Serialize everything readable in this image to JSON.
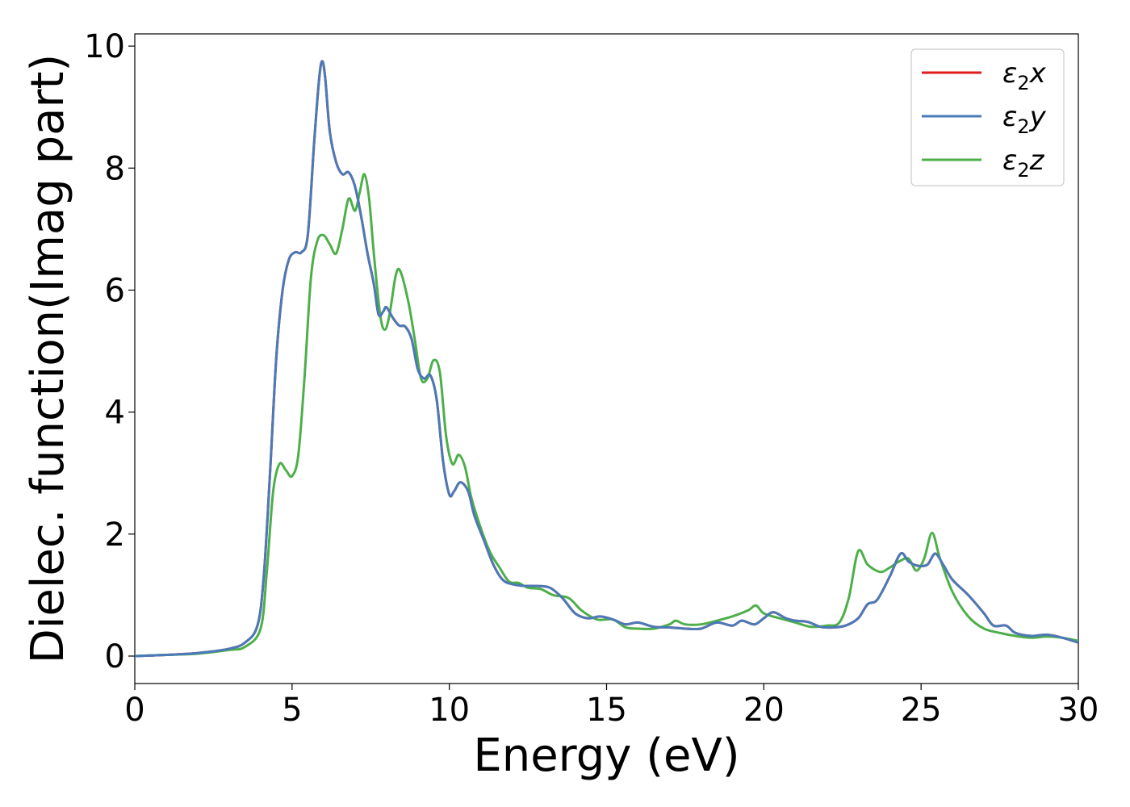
{
  "chart_data": {
    "type": "line",
    "xlabel": "Energy (eV)",
    "ylabel": "Dielec. function(Imag part)",
    "xlim": [
      0,
      30
    ],
    "ylim": [
      -0.45,
      10.2
    ],
    "xticks": [
      0,
      5,
      10,
      15,
      20,
      25,
      30
    ],
    "yticks": [
      0,
      2,
      4,
      6,
      8,
      10
    ],
    "xtick_labels": [
      "0",
      "5",
      "10",
      "15",
      "20",
      "25",
      "30"
    ],
    "ytick_labels": [
      "0",
      "2",
      "4",
      "6",
      "8",
      "10"
    ],
    "grid": false,
    "legend_position": "top-right",
    "series": [
      {
        "name": "ε2x",
        "legend_main": "ε",
        "legend_sub": "2",
        "legend_var": "x",
        "color": "#e41a1c",
        "points": [
          [
            0,
            0
          ],
          [
            1,
            0.02
          ],
          [
            2,
            0.05
          ],
          [
            3,
            0.12
          ],
          [
            3.5,
            0.22
          ],
          [
            3.9,
            0.5
          ],
          [
            4.1,
            1.3
          ],
          [
            4.3,
            3.0
          ],
          [
            4.5,
            4.9
          ],
          [
            4.7,
            6.0
          ],
          [
            4.9,
            6.5
          ],
          [
            5.1,
            6.62
          ],
          [
            5.3,
            6.62
          ],
          [
            5.5,
            6.9
          ],
          [
            5.7,
            8.4
          ],
          [
            5.85,
            9.4
          ],
          [
            5.95,
            9.75
          ],
          [
            6.05,
            9.5
          ],
          [
            6.2,
            8.6
          ],
          [
            6.4,
            8.1
          ],
          [
            6.6,
            7.9
          ],
          [
            6.8,
            7.93
          ],
          [
            7.0,
            7.7
          ],
          [
            7.2,
            7.2
          ],
          [
            7.4,
            6.6
          ],
          [
            7.6,
            6.1
          ],
          [
            7.75,
            5.6
          ],
          [
            7.9,
            5.65
          ],
          [
            8.0,
            5.72
          ],
          [
            8.2,
            5.55
          ],
          [
            8.4,
            5.42
          ],
          [
            8.6,
            5.4
          ],
          [
            8.8,
            5.2
          ],
          [
            9.0,
            4.7
          ],
          [
            9.2,
            4.55
          ],
          [
            9.4,
            4.6
          ],
          [
            9.6,
            4.2
          ],
          [
            9.8,
            3.2
          ],
          [
            10.0,
            2.65
          ],
          [
            10.15,
            2.7
          ],
          [
            10.35,
            2.85
          ],
          [
            10.6,
            2.7
          ],
          [
            10.8,
            2.3
          ],
          [
            11.1,
            1.9
          ],
          [
            11.4,
            1.5
          ],
          [
            11.7,
            1.25
          ],
          [
            12.0,
            1.18
          ],
          [
            12.4,
            1.15
          ],
          [
            12.8,
            1.15
          ],
          [
            13.2,
            1.12
          ],
          [
            13.6,
            0.95
          ],
          [
            14.0,
            0.7
          ],
          [
            14.4,
            0.62
          ],
          [
            14.8,
            0.65
          ],
          [
            15.2,
            0.6
          ],
          [
            15.6,
            0.52
          ],
          [
            16.0,
            0.55
          ],
          [
            16.5,
            0.48
          ],
          [
            17.0,
            0.47
          ],
          [
            17.5,
            0.45
          ],
          [
            18.0,
            0.45
          ],
          [
            18.5,
            0.55
          ],
          [
            19.0,
            0.5
          ],
          [
            19.3,
            0.58
          ],
          [
            19.7,
            0.52
          ],
          [
            20.0,
            0.62
          ],
          [
            20.3,
            0.72
          ],
          [
            20.7,
            0.62
          ],
          [
            21.0,
            0.58
          ],
          [
            21.4,
            0.56
          ],
          [
            21.8,
            0.48
          ],
          [
            22.2,
            0.47
          ],
          [
            22.6,
            0.5
          ],
          [
            23.0,
            0.62
          ],
          [
            23.3,
            0.85
          ],
          [
            23.6,
            0.92
          ],
          [
            24.0,
            1.3
          ],
          [
            24.35,
            1.68
          ],
          [
            24.6,
            1.55
          ],
          [
            24.9,
            1.48
          ],
          [
            25.2,
            1.5
          ],
          [
            25.45,
            1.68
          ],
          [
            25.7,
            1.5
          ],
          [
            26.0,
            1.25
          ],
          [
            26.5,
            1.0
          ],
          [
            27.0,
            0.7
          ],
          [
            27.3,
            0.5
          ],
          [
            27.7,
            0.5
          ],
          [
            28.0,
            0.38
          ],
          [
            28.5,
            0.33
          ],
          [
            29.0,
            0.35
          ],
          [
            29.5,
            0.3
          ],
          [
            30.0,
            0.22
          ]
        ]
      },
      {
        "name": "ε2y",
        "legend_main": "ε",
        "legend_sub": "2",
        "legend_var": "y",
        "color": "#4a7ab8",
        "points": [
          [
            0,
            0
          ],
          [
            1,
            0.02
          ],
          [
            2,
            0.05
          ],
          [
            3,
            0.12
          ],
          [
            3.5,
            0.22
          ],
          [
            3.9,
            0.5
          ],
          [
            4.1,
            1.3
          ],
          [
            4.3,
            3.0
          ],
          [
            4.5,
            4.9
          ],
          [
            4.7,
            6.0
          ],
          [
            4.9,
            6.5
          ],
          [
            5.1,
            6.62
          ],
          [
            5.3,
            6.62
          ],
          [
            5.5,
            6.9
          ],
          [
            5.7,
            8.4
          ],
          [
            5.85,
            9.4
          ],
          [
            5.95,
            9.75
          ],
          [
            6.05,
            9.5
          ],
          [
            6.2,
            8.6
          ],
          [
            6.4,
            8.1
          ],
          [
            6.6,
            7.9
          ],
          [
            6.8,
            7.93
          ],
          [
            7.0,
            7.7
          ],
          [
            7.2,
            7.2
          ],
          [
            7.4,
            6.6
          ],
          [
            7.6,
            6.1
          ],
          [
            7.75,
            5.6
          ],
          [
            7.9,
            5.65
          ],
          [
            8.0,
            5.72
          ],
          [
            8.2,
            5.55
          ],
          [
            8.4,
            5.42
          ],
          [
            8.6,
            5.4
          ],
          [
            8.8,
            5.2
          ],
          [
            9.0,
            4.7
          ],
          [
            9.2,
            4.55
          ],
          [
            9.4,
            4.6
          ],
          [
            9.6,
            4.2
          ],
          [
            9.8,
            3.2
          ],
          [
            10.0,
            2.65
          ],
          [
            10.15,
            2.7
          ],
          [
            10.35,
            2.85
          ],
          [
            10.6,
            2.7
          ],
          [
            10.8,
            2.3
          ],
          [
            11.1,
            1.9
          ],
          [
            11.4,
            1.5
          ],
          [
            11.7,
            1.25
          ],
          [
            12.0,
            1.18
          ],
          [
            12.4,
            1.15
          ],
          [
            12.8,
            1.15
          ],
          [
            13.2,
            1.12
          ],
          [
            13.6,
            0.95
          ],
          [
            14.0,
            0.7
          ],
          [
            14.4,
            0.62
          ],
          [
            14.8,
            0.65
          ],
          [
            15.2,
            0.6
          ],
          [
            15.6,
            0.52
          ],
          [
            16.0,
            0.55
          ],
          [
            16.5,
            0.48
          ],
          [
            17.0,
            0.47
          ],
          [
            17.5,
            0.45
          ],
          [
            18.0,
            0.45
          ],
          [
            18.5,
            0.55
          ],
          [
            19.0,
            0.5
          ],
          [
            19.3,
            0.58
          ],
          [
            19.7,
            0.52
          ],
          [
            20.0,
            0.62
          ],
          [
            20.3,
            0.72
          ],
          [
            20.7,
            0.62
          ],
          [
            21.0,
            0.58
          ],
          [
            21.4,
            0.56
          ],
          [
            21.8,
            0.48
          ],
          [
            22.2,
            0.47
          ],
          [
            22.6,
            0.5
          ],
          [
            23.0,
            0.62
          ],
          [
            23.3,
            0.85
          ],
          [
            23.6,
            0.92
          ],
          [
            24.0,
            1.3
          ],
          [
            24.35,
            1.68
          ],
          [
            24.6,
            1.55
          ],
          [
            24.9,
            1.48
          ],
          [
            25.2,
            1.5
          ],
          [
            25.45,
            1.68
          ],
          [
            25.7,
            1.5
          ],
          [
            26.0,
            1.25
          ],
          [
            26.5,
            1.0
          ],
          [
            27.0,
            0.7
          ],
          [
            27.3,
            0.5
          ],
          [
            27.7,
            0.5
          ],
          [
            28.0,
            0.38
          ],
          [
            28.5,
            0.33
          ],
          [
            29.0,
            0.35
          ],
          [
            29.5,
            0.3
          ],
          [
            30.0,
            0.22
          ]
        ]
      },
      {
        "name": "ε2z",
        "legend_main": "ε",
        "legend_sub": "2",
        "legend_var": "z",
        "color": "#4daf4a",
        "points": [
          [
            0,
            0
          ],
          [
            1,
            0.02
          ],
          [
            2,
            0.04
          ],
          [
            3,
            0.1
          ],
          [
            3.5,
            0.15
          ],
          [
            4.0,
            0.45
          ],
          [
            4.2,
            1.4
          ],
          [
            4.4,
            2.7
          ],
          [
            4.6,
            3.15
          ],
          [
            4.8,
            3.05
          ],
          [
            5.0,
            2.95
          ],
          [
            5.2,
            3.3
          ],
          [
            5.4,
            4.6
          ],
          [
            5.6,
            6.2
          ],
          [
            5.8,
            6.8
          ],
          [
            6.0,
            6.9
          ],
          [
            6.2,
            6.75
          ],
          [
            6.4,
            6.6
          ],
          [
            6.6,
            7.0
          ],
          [
            6.8,
            7.5
          ],
          [
            7.0,
            7.3
          ],
          [
            7.15,
            7.6
          ],
          [
            7.3,
            7.9
          ],
          [
            7.45,
            7.5
          ],
          [
            7.6,
            6.6
          ],
          [
            7.8,
            5.6
          ],
          [
            7.95,
            5.35
          ],
          [
            8.1,
            5.6
          ],
          [
            8.3,
            6.25
          ],
          [
            8.45,
            6.3
          ],
          [
            8.7,
            5.8
          ],
          [
            8.9,
            5.2
          ],
          [
            9.1,
            4.55
          ],
          [
            9.3,
            4.55
          ],
          [
            9.5,
            4.85
          ],
          [
            9.7,
            4.65
          ],
          [
            9.9,
            3.6
          ],
          [
            10.1,
            3.15
          ],
          [
            10.3,
            3.3
          ],
          [
            10.5,
            3.1
          ],
          [
            10.7,
            2.6
          ],
          [
            11.0,
            2.1
          ],
          [
            11.3,
            1.7
          ],
          [
            11.6,
            1.45
          ],
          [
            11.9,
            1.22
          ],
          [
            12.2,
            1.2
          ],
          [
            12.5,
            1.12
          ],
          [
            12.9,
            1.1
          ],
          [
            13.3,
            1.0
          ],
          [
            13.8,
            0.95
          ],
          [
            14.2,
            0.75
          ],
          [
            14.7,
            0.6
          ],
          [
            15.2,
            0.6
          ],
          [
            15.6,
            0.47
          ],
          [
            16.0,
            0.45
          ],
          [
            16.5,
            0.45
          ],
          [
            17.0,
            0.52
          ],
          [
            17.2,
            0.58
          ],
          [
            17.5,
            0.52
          ],
          [
            18.0,
            0.52
          ],
          [
            18.5,
            0.58
          ],
          [
            19.0,
            0.65
          ],
          [
            19.5,
            0.75
          ],
          [
            19.75,
            0.83
          ],
          [
            20.0,
            0.7
          ],
          [
            20.5,
            0.62
          ],
          [
            21.0,
            0.55
          ],
          [
            21.5,
            0.48
          ],
          [
            22.0,
            0.5
          ],
          [
            22.4,
            0.55
          ],
          [
            22.7,
            0.95
          ],
          [
            23.0,
            1.72
          ],
          [
            23.3,
            1.5
          ],
          [
            23.7,
            1.38
          ],
          [
            24.0,
            1.45
          ],
          [
            24.3,
            1.55
          ],
          [
            24.6,
            1.6
          ],
          [
            24.85,
            1.4
          ],
          [
            25.1,
            1.6
          ],
          [
            25.35,
            2.02
          ],
          [
            25.6,
            1.6
          ],
          [
            26.0,
            1.05
          ],
          [
            26.5,
            0.65
          ],
          [
            27.0,
            0.45
          ],
          [
            27.5,
            0.38
          ],
          [
            28.0,
            0.33
          ],
          [
            28.5,
            0.3
          ],
          [
            29.0,
            0.32
          ],
          [
            29.5,
            0.3
          ],
          [
            30.0,
            0.25
          ]
        ]
      }
    ]
  }
}
